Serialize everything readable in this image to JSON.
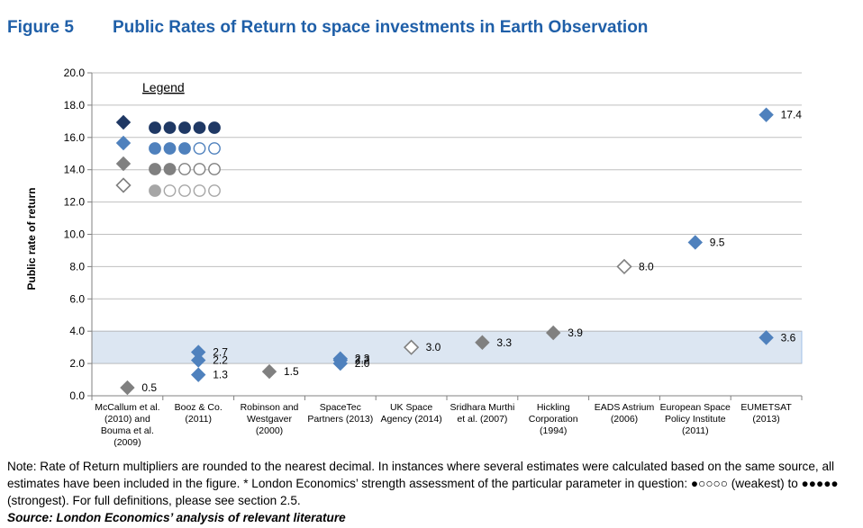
{
  "figure": {
    "number": "Figure 5",
    "title": "Public Rates of Return to space investments in Earth Observation"
  },
  "colors": {
    "strongest": "#1f3864",
    "strong": "#4f81bd",
    "medium": "#808080",
    "weakest_outline": "#808080",
    "band": "#dce6f2",
    "title": "#1f5fa8"
  },
  "chart_data": {
    "type": "scatter",
    "ylabel": "Public rate of return",
    "ylim": [
      0,
      20
    ],
    "yticks": [
      "0.0",
      "2.0",
      "4.0",
      "6.0",
      "8.0",
      "10.0",
      "12.0",
      "14.0",
      "16.0",
      "18.0",
      "20.0"
    ],
    "categories": [
      [
        "McCallum et al.",
        "(2010) and",
        "Bouma et al.",
        "(2009)"
      ],
      [
        "Booz & Co.",
        "(2011)"
      ],
      [
        "Robinson and",
        "Westgaver",
        "(2000)"
      ],
      [
        "SpaceTec",
        "Partners (2013)"
      ],
      [
        "UK Space",
        "Agency (2014)"
      ],
      [
        "Sridhara Murthi",
        "et al. (2007)"
      ],
      [
        "Hickling",
        "Corporation",
        "(1994)"
      ],
      [
        "EADS Astrium",
        "(2006)"
      ],
      [
        "European Space",
        "Policy Institute",
        "(2011)"
      ],
      [
        "EUMETSAT",
        "(2013)"
      ]
    ],
    "band": [
      2.0,
      4.0
    ],
    "points": [
      {
        "cat": 0,
        "y": 0.5,
        "strength": "medium",
        "label": "0.5"
      },
      {
        "cat": 1,
        "y": 2.7,
        "strength": "strong",
        "label": "2.7"
      },
      {
        "cat": 1,
        "y": 2.2,
        "strength": "strong",
        "label": "2.2"
      },
      {
        "cat": 1,
        "y": 1.3,
        "strength": "strong",
        "label": "1.3"
      },
      {
        "cat": 2,
        "y": 1.5,
        "strength": "medium",
        "label": "1.5"
      },
      {
        "cat": 3,
        "y": 2.3,
        "strength": "strong",
        "label": "2.3"
      },
      {
        "cat": 3,
        "y": 2.2,
        "strength": "strong",
        "label": "2.2"
      },
      {
        "cat": 3,
        "y": 2.0,
        "strength": "strong",
        "label": "2.0"
      },
      {
        "cat": 4,
        "y": 3.0,
        "strength": "weakest",
        "label": "3.0"
      },
      {
        "cat": 5,
        "y": 3.3,
        "strength": "medium",
        "label": "3.3"
      },
      {
        "cat": 6,
        "y": 3.9,
        "strength": "medium",
        "label": "3.9"
      },
      {
        "cat": 7,
        "y": 8.0,
        "strength": "weakest",
        "label": "8.0"
      },
      {
        "cat": 8,
        "y": 9.5,
        "strength": "strong",
        "label": "9.5"
      },
      {
        "cat": 9,
        "y": 17.4,
        "strength": "strong",
        "label": "17.4"
      },
      {
        "cat": 9,
        "y": 3.6,
        "strength": "strong",
        "label": "3.6"
      }
    ],
    "legend": {
      "title": "Legend",
      "entries": [
        {
          "strength": "strongest",
          "filled": 5
        },
        {
          "strength": "strong",
          "filled": 3
        },
        {
          "strength": "medium",
          "filled": 2
        },
        {
          "strength": "weakest",
          "filled": 1
        }
      ]
    }
  },
  "note": "Note: Rate of Return multipliers are rounded to the nearest decimal. In instances where several estimates were calculated based on the same source, all estimates have been included in the figure. * London Economics’ strength assessment of the particular parameter in question: ●○○○○ (weakest) to ●●●●● (strongest). For full definitions, please see section 2.5.",
  "source": "Source: London Economics’ analysis of relevant literature"
}
